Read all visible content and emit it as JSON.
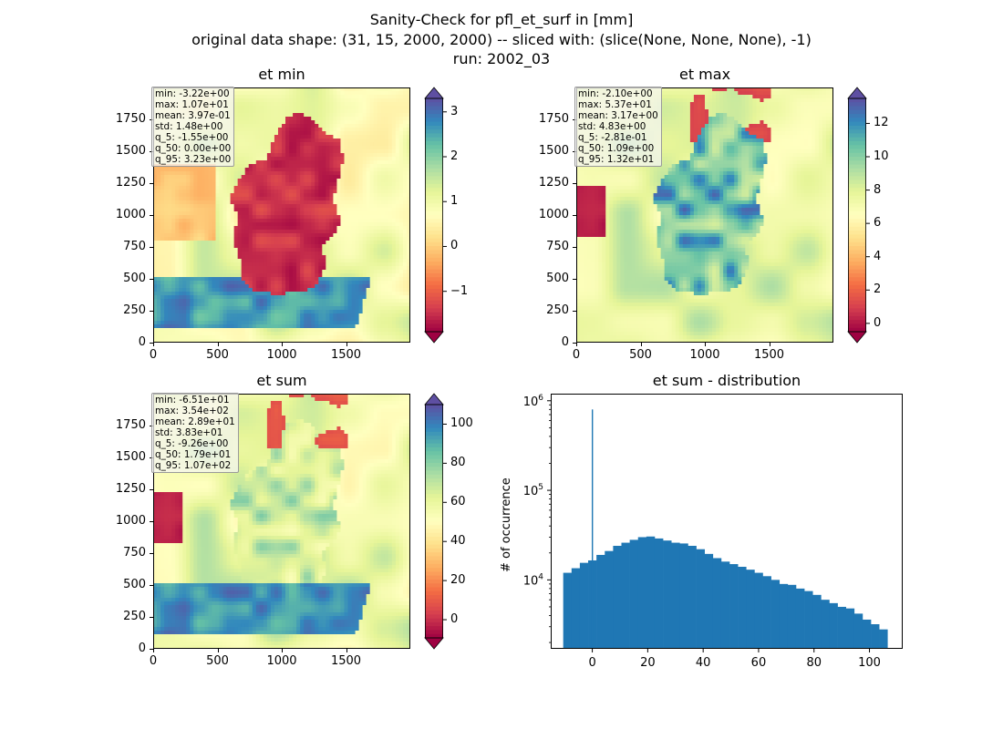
{
  "figure": {
    "suptitle_lines": [
      "Sanity-Check for pfl_et_surf in [mm]",
      "original data shape: (31, 15, 2000, 2000) -- sliced with: (slice(None, None, None), -1)",
      "run: 2002_03"
    ]
  },
  "colors": {
    "cmap": [
      "#9e0142",
      "#d53e4f",
      "#f46d43",
      "#fdae61",
      "#fee08b",
      "#ffffbf",
      "#e6f598",
      "#abdda4",
      "#66c2a5",
      "#3288bd",
      "#5e4fa2"
    ],
    "hist_bar": "#1f77b4"
  },
  "panels": [
    {
      "key": "et_min",
      "title": "et min",
      "x_ticks": [
        "0",
        "500",
        "1000",
        "1500"
      ],
      "y_ticks": [
        "0",
        "250",
        "500",
        "750",
        "1000",
        "1250",
        "1500",
        "1750"
      ],
      "cbar_ticks": [
        "−1",
        "0",
        "1",
        "2",
        "3"
      ],
      "cbar_range": [
        -1.9,
        3.3
      ],
      "cbar_tick_values": [
        -1,
        0,
        1,
        2,
        3
      ],
      "stats": [
        "min: -3.22e+00",
        "max: 1.07e+01",
        "mean: 3.97e-01",
        "std: 1.48e+00",
        "q_5: -1.55e+00",
        "q_50: 0.00e+00",
        "q_95: 3.23e+00"
      ]
    },
    {
      "key": "et_max",
      "title": "et max",
      "x_ticks": [
        "0",
        "500",
        "1000",
        "1500"
      ],
      "y_ticks": [
        "0",
        "250",
        "500",
        "750",
        "1000",
        "1250",
        "1500",
        "1750"
      ],
      "cbar_ticks": [
        "0",
        "2",
        "4",
        "6",
        "8",
        "10",
        "12"
      ],
      "cbar_range": [
        -0.5,
        13.5
      ],
      "cbar_tick_values": [
        0,
        2,
        4,
        6,
        8,
        10,
        12
      ],
      "stats": [
        "min: -2.10e+00",
        "max: 5.37e+01",
        "mean: 3.17e+00",
        "std: 4.83e+00",
        "q_5: -2.81e-01",
        "q_50: 1.09e+00",
        "q_95: 1.32e+01"
      ]
    },
    {
      "key": "et_sum",
      "title": "et sum",
      "x_ticks": [
        "0",
        "500",
        "1000",
        "1500"
      ],
      "y_ticks": [
        "0",
        "250",
        "500",
        "750",
        "1000",
        "1250",
        "1500",
        "1750"
      ],
      "cbar_ticks": [
        "0",
        "20",
        "40",
        "60",
        "80",
        "100"
      ],
      "cbar_range": [
        -9.3,
        110
      ],
      "cbar_tick_values": [
        0,
        20,
        40,
        60,
        80,
        100
      ],
      "stats": [
        "min: -6.51e+01",
        "max: 3.54e+02",
        "mean: 2.89e+01",
        "std: 3.83e+01",
        "q_5: -9.26e+00",
        "q_50: 1.79e+01",
        "q_95: 1.07e+02"
      ]
    }
  ],
  "chart_data": [
    {
      "type": "heatmap",
      "title": "et min",
      "xlim": [
        0,
        2000
      ],
      "ylim": [
        0,
        2000
      ],
      "colorbar_range": [
        -1.9,
        3.3
      ]
    },
    {
      "type": "heatmap",
      "title": "et max",
      "xlim": [
        0,
        2000
      ],
      "ylim": [
        0,
        2000
      ],
      "colorbar_range": [
        -0.5,
        13.5
      ]
    },
    {
      "type": "heatmap",
      "title": "et sum",
      "xlim": [
        0,
        2000
      ],
      "ylim": [
        0,
        2000
      ],
      "colorbar_range": [
        -9.3,
        110
      ]
    },
    {
      "type": "bar",
      "title": "et sum - distribution",
      "ylabel": "# of occurrence",
      "xlabel": "",
      "yscale": "log",
      "xlim": [
        -15,
        112
      ],
      "ylim": [
        1700,
        1200000
      ],
      "x_ticks": [
        0,
        20,
        40,
        60,
        80,
        100
      ],
      "y_ticks": [
        {
          "value": 10000,
          "label": "10",
          "exp": "4"
        },
        {
          "value": 100000,
          "label": "10",
          "exp": "5"
        },
        {
          "value": 1000000,
          "label": "10",
          "exp": "6"
        }
      ],
      "spike": {
        "x": 0,
        "y": 800000
      },
      "x": [
        -9,
        -6,
        -3,
        0,
        3,
        6,
        9,
        12,
        15,
        18,
        21,
        24,
        27,
        30,
        33,
        36,
        39,
        42,
        45,
        48,
        51,
        54,
        57,
        60,
        63,
        66,
        69,
        72,
        75,
        78,
        81,
        84,
        87,
        90,
        93,
        96,
        99,
        102,
        105
      ],
      "values": [
        12000,
        13500,
        15500,
        16500,
        19000,
        21000,
        24000,
        26000,
        28000,
        30000,
        30500,
        29000,
        27500,
        26000,
        25500,
        24000,
        22000,
        19500,
        17500,
        16000,
        15000,
        14000,
        13000,
        12000,
        11000,
        10000,
        9000,
        8800,
        8000,
        7500,
        6800,
        6000,
        5500,
        5000,
        4800,
        4200,
        3600,
        3200,
        2800
      ]
    }
  ]
}
